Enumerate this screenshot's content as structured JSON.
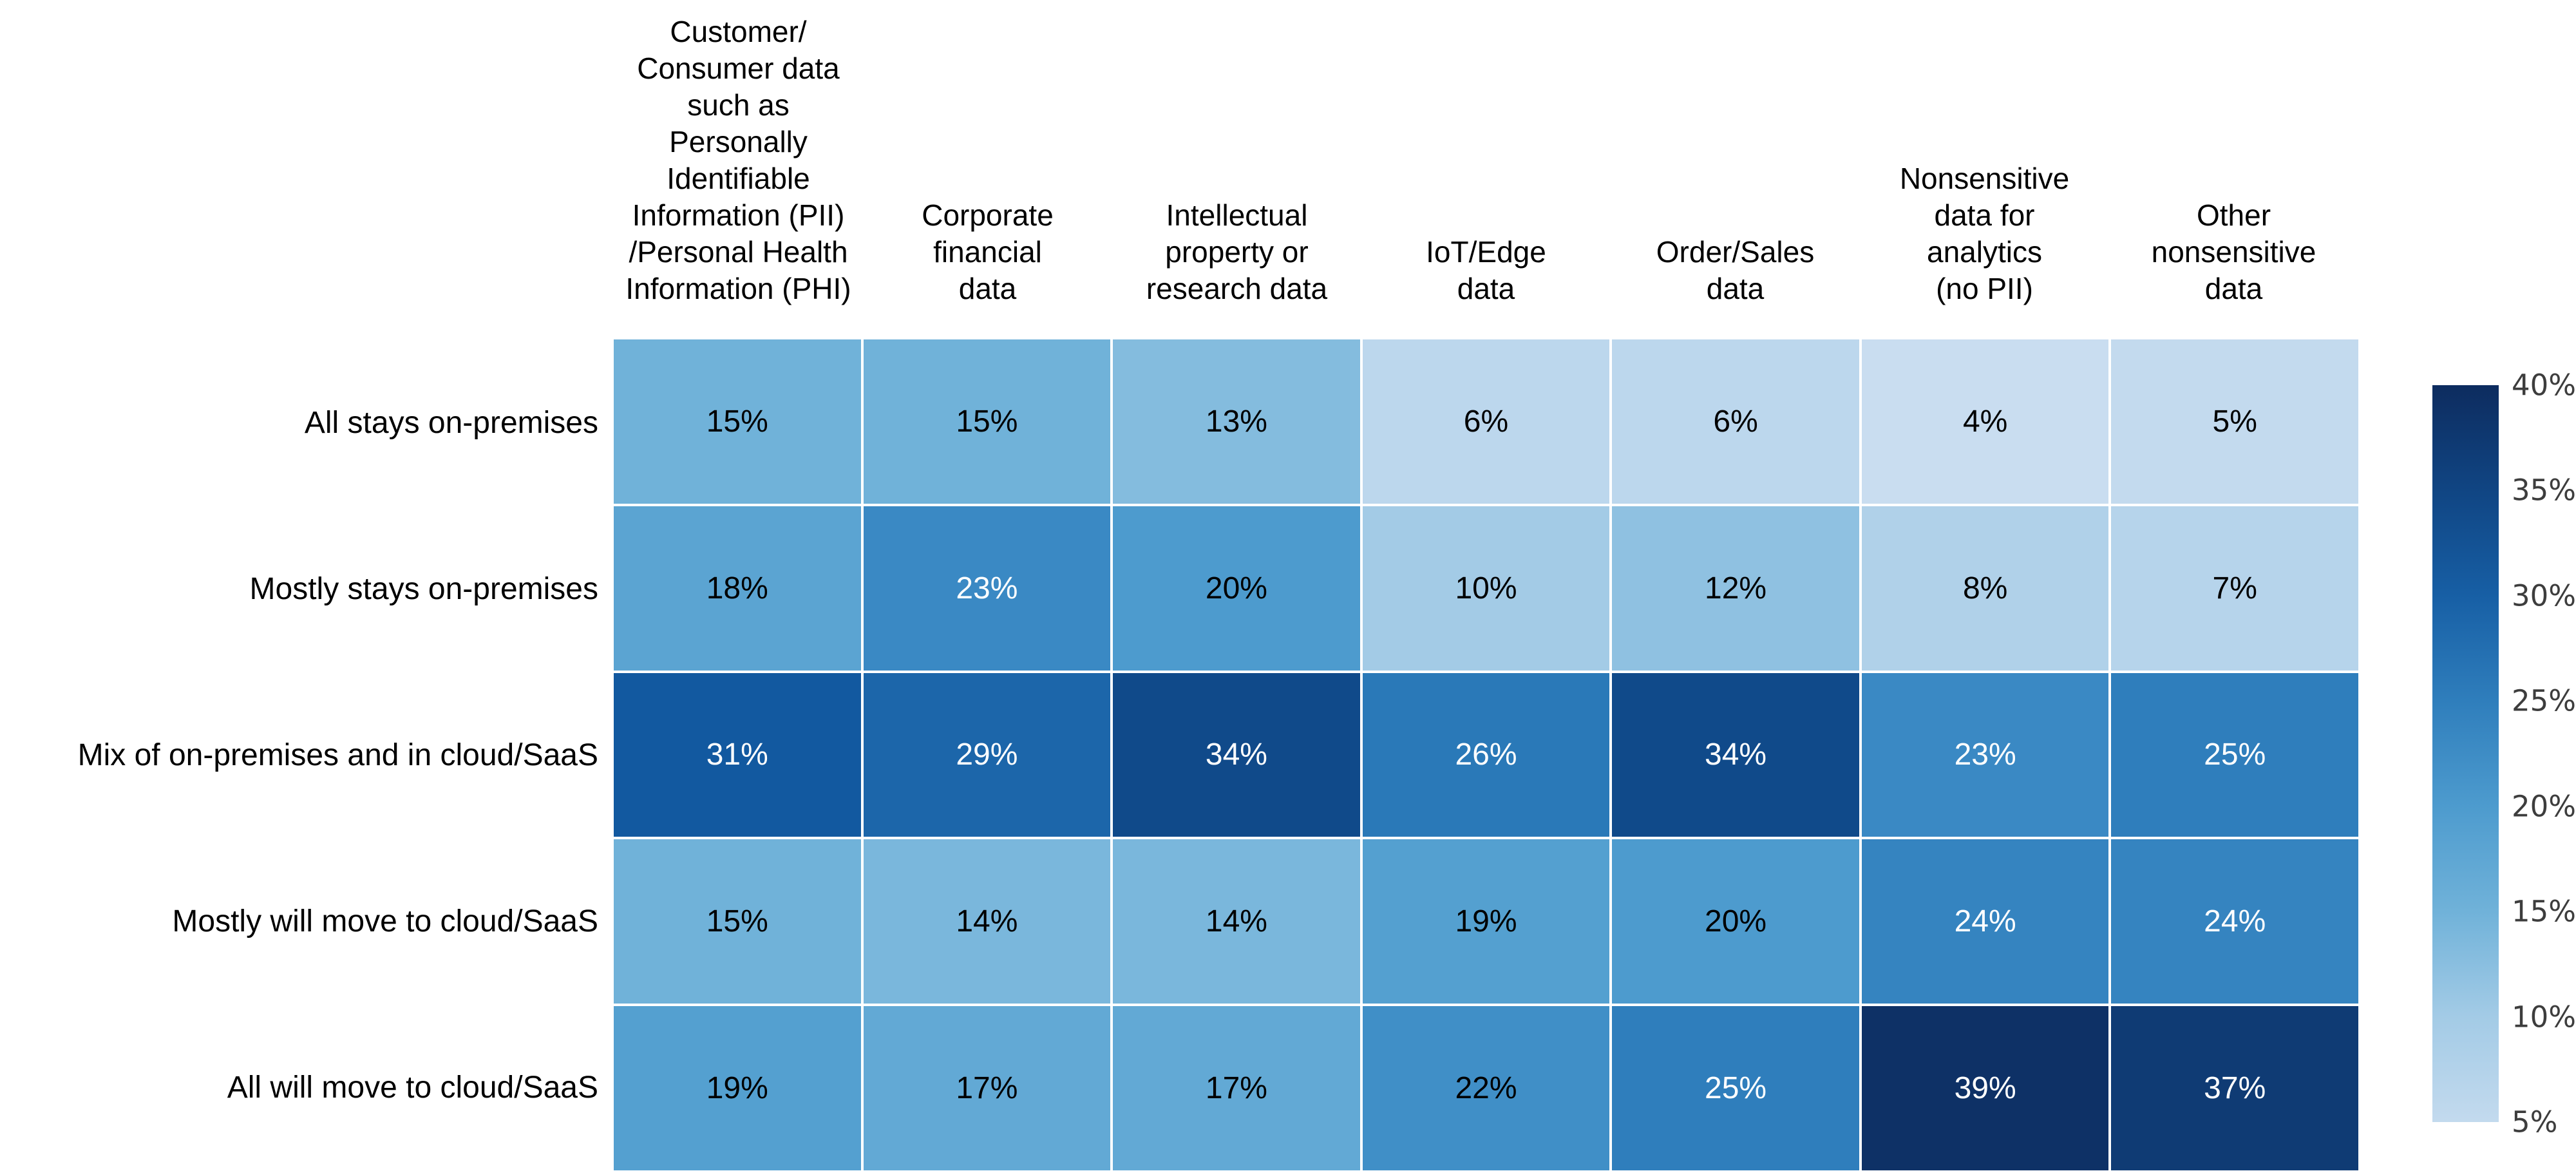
{
  "chart_data": {
    "type": "heatmap",
    "title": "",
    "unit": "%",
    "columns": [
      "Customer/\nConsumer data\nsuch as\nPersonally\nIdentifiable\nInformation (PII)\n/Personal Health\nInformation (PHI)",
      "Corporate\nfinancial\ndata",
      "Intellectual\nproperty or\nresearch data",
      "IoT/Edge\ndata",
      "Order/Sales\ndata",
      "Nonsensitive\ndata for\nanalytics\n(no PII)",
      "Other\nnonsensitive\ndata"
    ],
    "rows": [
      "All stays on-premises",
      "Mostly stays on-premises",
      "Mix of on-premises and in cloud/SaaS",
      "Mostly will move to cloud/SaaS",
      "All will move to cloud/SaaS"
    ],
    "values": [
      [
        15,
        15,
        13,
        6,
        6,
        4,
        5
      ],
      [
        18,
        23,
        20,
        10,
        12,
        8,
        7
      ],
      [
        31,
        29,
        34,
        26,
        34,
        23,
        25
      ],
      [
        15,
        14,
        14,
        19,
        20,
        24,
        24
      ],
      [
        19,
        17,
        17,
        22,
        25,
        39,
        37
      ]
    ],
    "value_range": [
      4,
      40
    ],
    "white_label_min": 23,
    "cell_text_color_dark": "#000000",
    "cell_text_color_light": "#ffffff",
    "gridline_color": "#ffffff",
    "background": "#ffffff",
    "colormap": [
      {
        "value": 4,
        "color": "#c9ddf0"
      },
      {
        "value": 10,
        "color": "#a3cbe6"
      },
      {
        "value": 15,
        "color": "#70b2d9"
      },
      {
        "value": 20,
        "color": "#4d9bce"
      },
      {
        "value": 23,
        "color": "#3a89c4"
      },
      {
        "value": 26,
        "color": "#2a79b8"
      },
      {
        "value": 31,
        "color": "#1259a0"
      },
      {
        "value": 34,
        "color": "#104a8a"
      },
      {
        "value": 39,
        "color": "#0e3166"
      },
      {
        "value": 40,
        "color": "#0d2c5f"
      }
    ],
    "colorbar": {
      "position": "right",
      "tick_labels": [
        "40%",
        "35%",
        "30%",
        "25%",
        "20%",
        "15%",
        "10%",
        "5%"
      ],
      "tick_values": [
        40,
        35,
        30,
        25,
        20,
        15,
        10,
        5
      ],
      "tick_label_color": "#3d3d3d"
    }
  }
}
